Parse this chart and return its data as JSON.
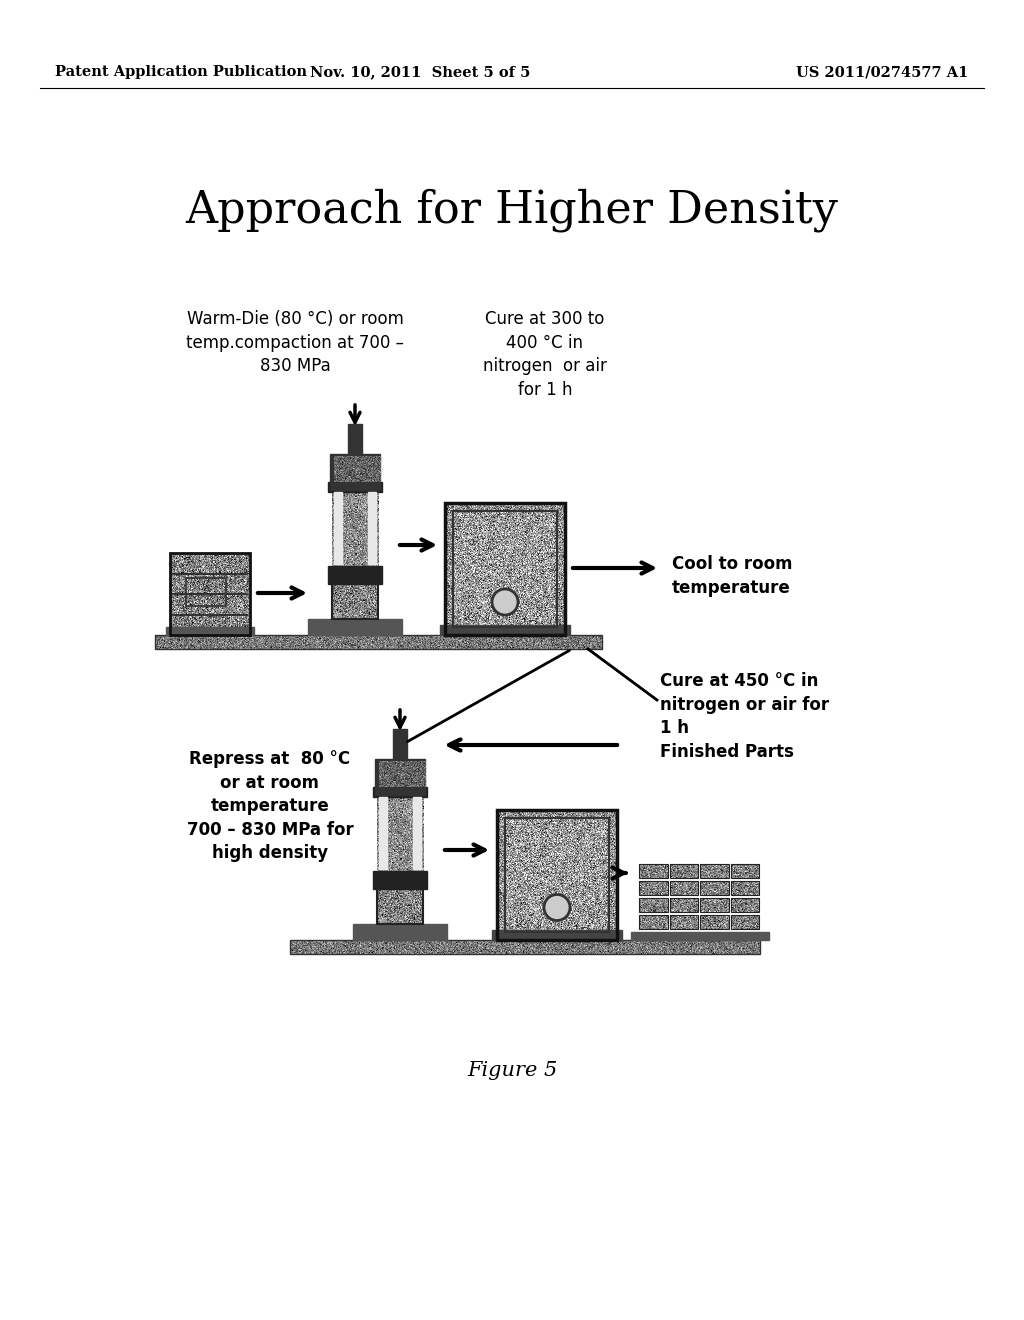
{
  "background_color": "#ffffff",
  "header_left": "Patent Application Publication",
  "header_center": "Nov. 10, 2011  Sheet 5 of 5",
  "header_right": "US 2011/0274577 A1",
  "title": "Approach for Higher Density",
  "label_top_left": "Warm-Die (80 °C) or room\ntemp.compaction at 700 –\n830 MPa",
  "label_top_middle": "Cure at 300 to\n400 °C in\nnitrogen  or air\nfor 1 h",
  "label_top_right": "Cool to room\ntemperature",
  "label_mid_right": "Cure at 450 °C in\nnitrogen or air for\n1 h\nFinished Parts",
  "label_bottom_left": "Repress at  80 °C\nor at room\ntemperature\n700 – 830 MPa for\nhigh density",
  "figure_caption": "Figure 5",
  "fig_w": 10.24,
  "fig_h": 13.2,
  "dpi": 100
}
